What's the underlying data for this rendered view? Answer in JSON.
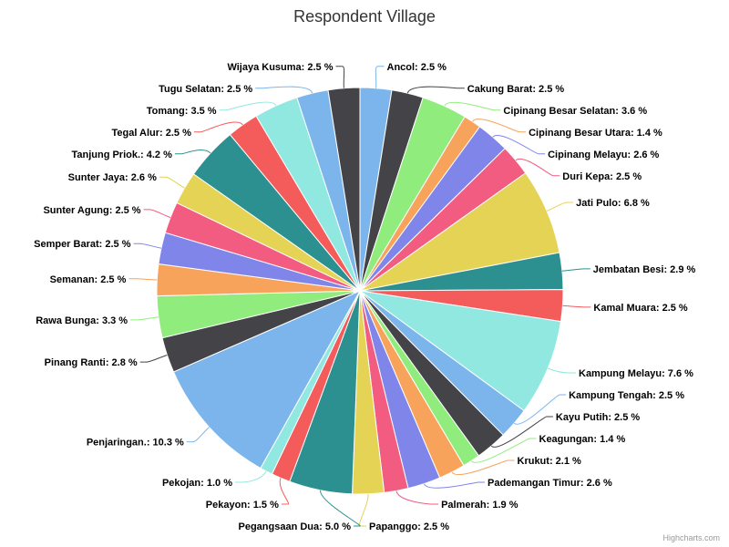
{
  "chart_data": {
    "type": "pie",
    "title": "Respondent Village",
    "credit": "Highcharts.com",
    "slices": [
      {
        "name": "Ancol",
        "value": 2.5,
        "label": "Ancol: 2.5 %",
        "color": "#7cb5ec"
      },
      {
        "name": "Cakung Barat",
        "value": 2.5,
        "label": "Cakung Barat: 2.5 %",
        "color": "#434348"
      },
      {
        "name": "Cipinang Besar Selatan",
        "value": 3.6,
        "label": "Cipinang Besar Selatan: 3.6 %",
        "color": "#90ed7d"
      },
      {
        "name": "Cipinang Besar Utara",
        "value": 1.4,
        "label": "Cipinang Besar Utara: 1.4 %",
        "color": "#f7a35c"
      },
      {
        "name": "Cipinang Melayu",
        "value": 2.6,
        "label": "Cipinang Melayu: 2.6 %",
        "color": "#8085e9"
      },
      {
        "name": "Duri Kepa",
        "value": 2.5,
        "label": "Duri Kepa: 2.5 %",
        "color": "#f15c80"
      },
      {
        "name": "Jati Pulo",
        "value": 6.8,
        "label": "Jati Pulo: 6.8 %",
        "color": "#e4d354"
      },
      {
        "name": "Jembatan Besi",
        "value": 2.9,
        "label": "Jembatan Besi: 2.9 %",
        "color": "#2b908f"
      },
      {
        "name": "Kamal Muara",
        "value": 2.5,
        "label": "Kamal Muara: 2.5 %",
        "color": "#f45b5b"
      },
      {
        "name": "Kampung Melayu",
        "value": 7.6,
        "label": "Kampung Melayu: 7.6 %",
        "color": "#91e8e1"
      },
      {
        "name": "Kampung Tengah",
        "value": 2.5,
        "label": "Kampung Tengah: 2.5 %",
        "color": "#7cb5ec"
      },
      {
        "name": "Kayu Putih",
        "value": 2.5,
        "label": "Kayu Putih: 2.5 %",
        "color": "#434348"
      },
      {
        "name": "Keagungan",
        "value": 1.4,
        "label": "Keagungan: 1.4 %",
        "color": "#90ed7d"
      },
      {
        "name": "Krukut",
        "value": 2.1,
        "label": "Krukut: 2.1 %",
        "color": "#f7a35c"
      },
      {
        "name": "Pademangan Timur",
        "value": 2.6,
        "label": "Pademangan Timur: 2.6 %",
        "color": "#8085e9"
      },
      {
        "name": "Palmerah",
        "value": 1.9,
        "label": "Palmerah: 1.9 %",
        "color": "#f15c80"
      },
      {
        "name": "Papanggo",
        "value": 2.5,
        "label": "Papanggo: 2.5 %",
        "color": "#e4d354"
      },
      {
        "name": "Pegangsaan Dua",
        "value": 5.0,
        "label": "Pegangsaan Dua: 5.0 %",
        "color": "#2b908f"
      },
      {
        "name": "Pekayon",
        "value": 1.5,
        "label": "Pekayon: 1.5 %",
        "color": "#f45b5b"
      },
      {
        "name": "Pekojan",
        "value": 1.0,
        "label": "Pekojan: 1.0 %",
        "color": "#91e8e1"
      },
      {
        "name": "Penjaringan.",
        "value": 10.3,
        "label": "Penjaringan.: 10.3 %",
        "color": "#7cb5ec"
      },
      {
        "name": "Pinang Ranti",
        "value": 2.8,
        "label": "Pinang Ranti: 2.8 %",
        "color": "#434348"
      },
      {
        "name": "Rawa Bunga",
        "value": 3.3,
        "label": "Rawa Bunga: 3.3 %",
        "color": "#90ed7d"
      },
      {
        "name": "Semanan",
        "value": 2.5,
        "label": "Semanan: 2.5 %",
        "color": "#f7a35c"
      },
      {
        "name": "Semper Barat",
        "value": 2.5,
        "label": "Semper Barat: 2.5 %",
        "color": "#8085e9"
      },
      {
        "name": "Sunter Agung",
        "value": 2.5,
        "label": "Sunter Agung: 2.5 %",
        "color": "#f15c80"
      },
      {
        "name": "Sunter Jaya",
        "value": 2.6,
        "label": "Sunter Jaya: 2.6 %",
        "color": "#e4d354"
      },
      {
        "name": "Tanjung Priok.",
        "value": 4.2,
        "label": "Tanjung Priok.: 4.2 %",
        "color": "#2b908f"
      },
      {
        "name": "Tegal Alur",
        "value": 2.5,
        "label": "Tegal Alur: 2.5 %",
        "color": "#f45b5b"
      },
      {
        "name": "Tomang",
        "value": 3.5,
        "label": "Tomang: 3.5 %",
        "color": "#91e8e1"
      },
      {
        "name": "Tugu Selatan",
        "value": 2.5,
        "label": "Tugu Selatan: 2.5 %",
        "color": "#7cb5ec"
      },
      {
        "name": "Wijaya Kusuma",
        "value": 2.5,
        "label": "Wijaya Kusuma: 2.5 %",
        "color": "#434348"
      }
    ]
  }
}
